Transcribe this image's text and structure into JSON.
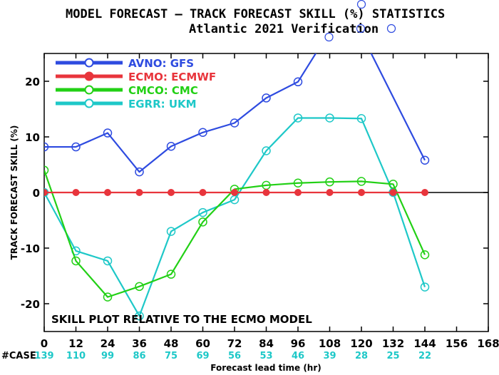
{
  "header": {
    "title": "MODEL FORECAST – TRACK FORECAST SKILL (%) STATISTICS",
    "subtitle": "Atlantic 2021 Verification"
  },
  "note": "SKILL PLOT RELATIVE TO THE ECMO MODEL",
  "cases_label": "#CASE",
  "colors": {
    "AVNO": "#2e4be0",
    "ECMO": "#e8353c",
    "CMCO": "#22d015",
    "EGRR": "#1ec8c8",
    "cases": "#1ec8c8"
  },
  "chart_data": {
    "type": "line",
    "xlabel": "Forecast lead time (hr)",
    "ylabel": "TRACK FORECAST SKILL (%)",
    "xlim": [
      0,
      168
    ],
    "ylim": [
      -25,
      25
    ],
    "x_ticks": [
      0,
      12,
      24,
      36,
      48,
      60,
      72,
      84,
      96,
      108,
      120,
      132,
      144,
      156,
      168
    ],
    "y_ticks": [
      -20,
      -10,
      0,
      10,
      20
    ],
    "cases": [
      {
        "x": 0,
        "n": "139"
      },
      {
        "x": 12,
        "n": "110"
      },
      {
        "x": 24,
        "n": "99"
      },
      {
        "x": 36,
        "n": "86"
      },
      {
        "x": 48,
        "n": "75"
      },
      {
        "x": 60,
        "n": "69"
      },
      {
        "x": 72,
        "n": "56"
      },
      {
        "x": 84,
        "n": "53"
      },
      {
        "x": 96,
        "n": "46"
      },
      {
        "x": 108,
        "n": "39"
      },
      {
        "x": 120,
        "n": "28"
      },
      {
        "x": 132,
        "n": "25"
      },
      {
        "x": 144,
        "n": "22"
      }
    ],
    "series": [
      {
        "name": "AVNO:  GFS",
        "key": "AVNO",
        "x": [
          0,
          12,
          24,
          36,
          48,
          60,
          72,
          84,
          96,
          108,
          120,
          144
        ],
        "y": [
          8.2,
          8.2,
          10.7,
          3.7,
          8.3,
          10.8,
          12.5,
          17.0,
          19.9,
          29.0,
          28.5,
          5.8
        ]
      },
      {
        "name": "ECMO:  ECMWF",
        "key": "ECMO",
        "x": [
          0,
          12,
          24,
          36,
          48,
          60,
          72,
          84,
          96,
          108,
          120,
          132,
          144
        ],
        "y": [
          0,
          0,
          0,
          0,
          0,
          0,
          0,
          0,
          0,
          0,
          0,
          0,
          0
        ]
      },
      {
        "name": "CMCO:  CMC",
        "key": "CMCO",
        "x": [
          0,
          12,
          24,
          36,
          48,
          60,
          72,
          84,
          96,
          108,
          120,
          132,
          144
        ],
        "y": [
          4.0,
          -12.3,
          -18.8,
          -16.9,
          -14.7,
          -5.3,
          0.6,
          1.3,
          1.7,
          1.9,
          2.0,
          1.5,
          -11.2
        ]
      },
      {
        "name": "EGRR:  UKM",
        "key": "EGRR",
        "x": [
          0,
          12,
          24,
          36,
          48,
          60,
          72,
          84,
          96,
          108,
          120,
          132,
          144
        ],
        "y": [
          0,
          -10.5,
          -12.3,
          -22.2,
          -7.0,
          -3.6,
          -1.3,
          7.5,
          13.4,
          13.4,
          13.3,
          0,
          -17.0
        ]
      }
    ],
    "offscale_markers": [
      {
        "key": "AVNO",
        "x": 108,
        "label": "y=29.0"
      },
      {
        "key": "AVNO",
        "x": 120,
        "label": "y=28.5"
      }
    ],
    "grid": false,
    "legend": "top-left"
  }
}
